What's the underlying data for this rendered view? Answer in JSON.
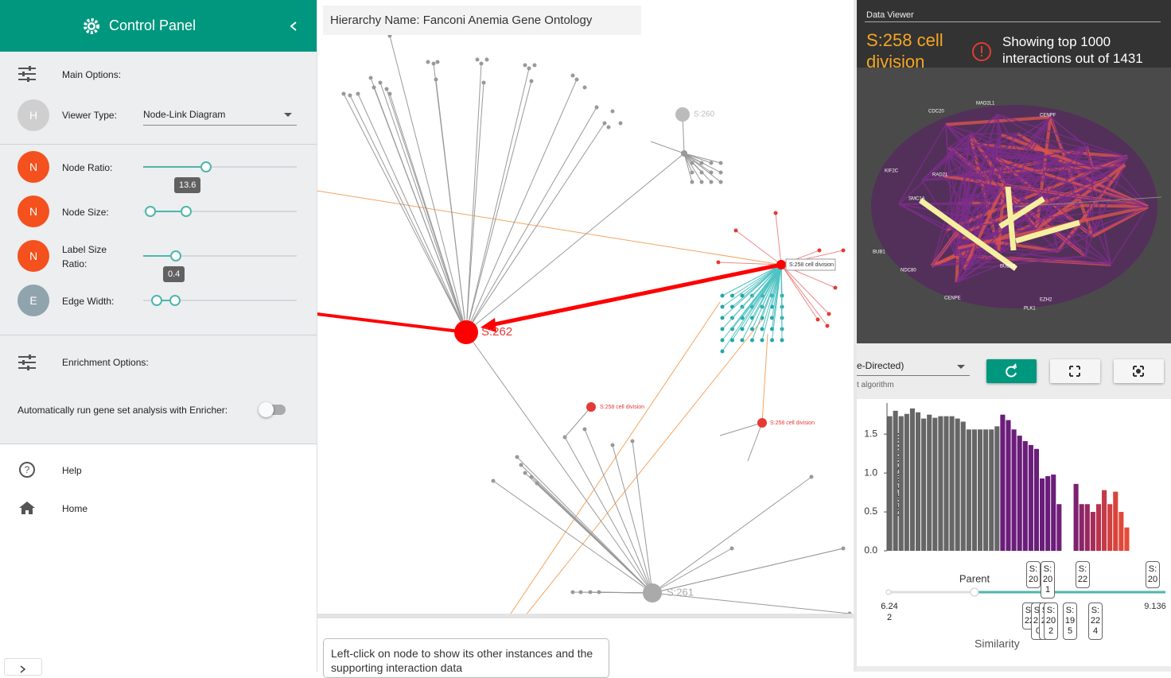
{
  "sidebar": {
    "title": "Control Panel",
    "main_options": "Main Options:",
    "viewer_type": {
      "avatar": "H",
      "label": "Viewer Type:",
      "value": "Node-Link Diagram"
    },
    "sliders": [
      {
        "avatar": "N",
        "label": "Node Ratio:"
      },
      {
        "avatar": "N",
        "label": "Node Size:",
        "tooltip": "13.6"
      },
      {
        "avatar": "N",
        "label": "Label Size Ratio:"
      },
      {
        "avatar": "E",
        "label": "Edge Width:",
        "tooltip": "0.4"
      }
    ],
    "enrichment_options": "Enrichment Options:",
    "auto_run": "Automatically run gene set analysis with Enricher:",
    "help": "Help",
    "home": "Home"
  },
  "main": {
    "hierarchy": "Hierarchy Name: Fanconi Anemia Gene Ontology",
    "hint": "Left-click on node to show its other instances and the supporting interaction data",
    "nodes": [
      "S:262",
      "S:261",
      "S:260",
      "S:258 cell division",
      "S:258 cell division",
      "S:258 cell division"
    ]
  },
  "data_viewer": {
    "heading": "Data Viewer",
    "term": "S:258 cell division",
    "notice": "Showing top 1000 interactions out of 1431",
    "genes": [
      "MAD2L1",
      "CDC20",
      "BUB1B",
      "CENPF",
      "KIF2C",
      "RAD21",
      "NDC80",
      "BUB1",
      "CENPE",
      "PLK1",
      "EZH2",
      "SMC1A"
    ],
    "layout": "e-Directed)",
    "layout_caption": "t algorithm"
  },
  "chart_data": {
    "type": "bar",
    "ylabel": "Gene Pairs (log10)",
    "values": [
      1.73,
      1.8,
      1.73,
      1.76,
      1.83,
      1.78,
      1.7,
      1.75,
      1.71,
      1.73,
      1.73,
      1.73,
      1.7,
      1.66,
      1.56,
      1.56,
      1.56,
      1.56,
      1.56,
      1.6,
      1.75,
      1.68,
      1.56,
      1.48,
      1.41,
      1.36,
      1.31,
      0.93,
      0.96,
      0.98,
      0.6,
      null,
      null,
      0.86,
      0.6,
      0.6,
      0.5,
      0.6,
      0.78,
      0.6,
      0.76,
      0.5,
      0.3
    ],
    "colors": [
      "#666666",
      "#666666",
      "#666666",
      "#666666",
      "#666666",
      "#666666",
      "#666666",
      "#666666",
      "#666666",
      "#666666",
      "#666666",
      "#666666",
      "#666666",
      "#666666",
      "#666666",
      "#666666",
      "#666666",
      "#666666",
      "#666666",
      "#666666",
      "#6b1d7a",
      "#6b1d7a",
      "#6b1d7a",
      "#6b1d7a",
      "#6b1d7a",
      "#6b1d7a",
      "#6b1d7a",
      "#6b1d7a",
      "#6b1d7a",
      "#6b1d7a",
      "#731e78",
      "#731e78",
      "#731e78",
      "#7d2170",
      "#8a2468",
      "#96285f",
      "#a62c58",
      "#b83350",
      "#c53a48",
      "#d04040",
      "#d8443c",
      "#e0483a",
      "#e64c38"
    ],
    "ylim": [
      0,
      1.9
    ],
    "yticks": [
      {
        "value": 0,
        "label": "0.0"
      },
      0.5,
      {
        "value": 1,
        "label": "1.0"
      },
      1.5
    ]
  },
  "similarity_slider": {
    "title": "Parent",
    "min": "6.242",
    "max": "9.136",
    "label": "Similarity",
    "top_labels": [
      "S:20",
      "S:201",
      "S:22",
      "S:20"
    ],
    "bottom_labels": [
      "S:22",
      "S:210",
      "S:208",
      "S:202",
      "S:195",
      "S:224"
    ]
  }
}
